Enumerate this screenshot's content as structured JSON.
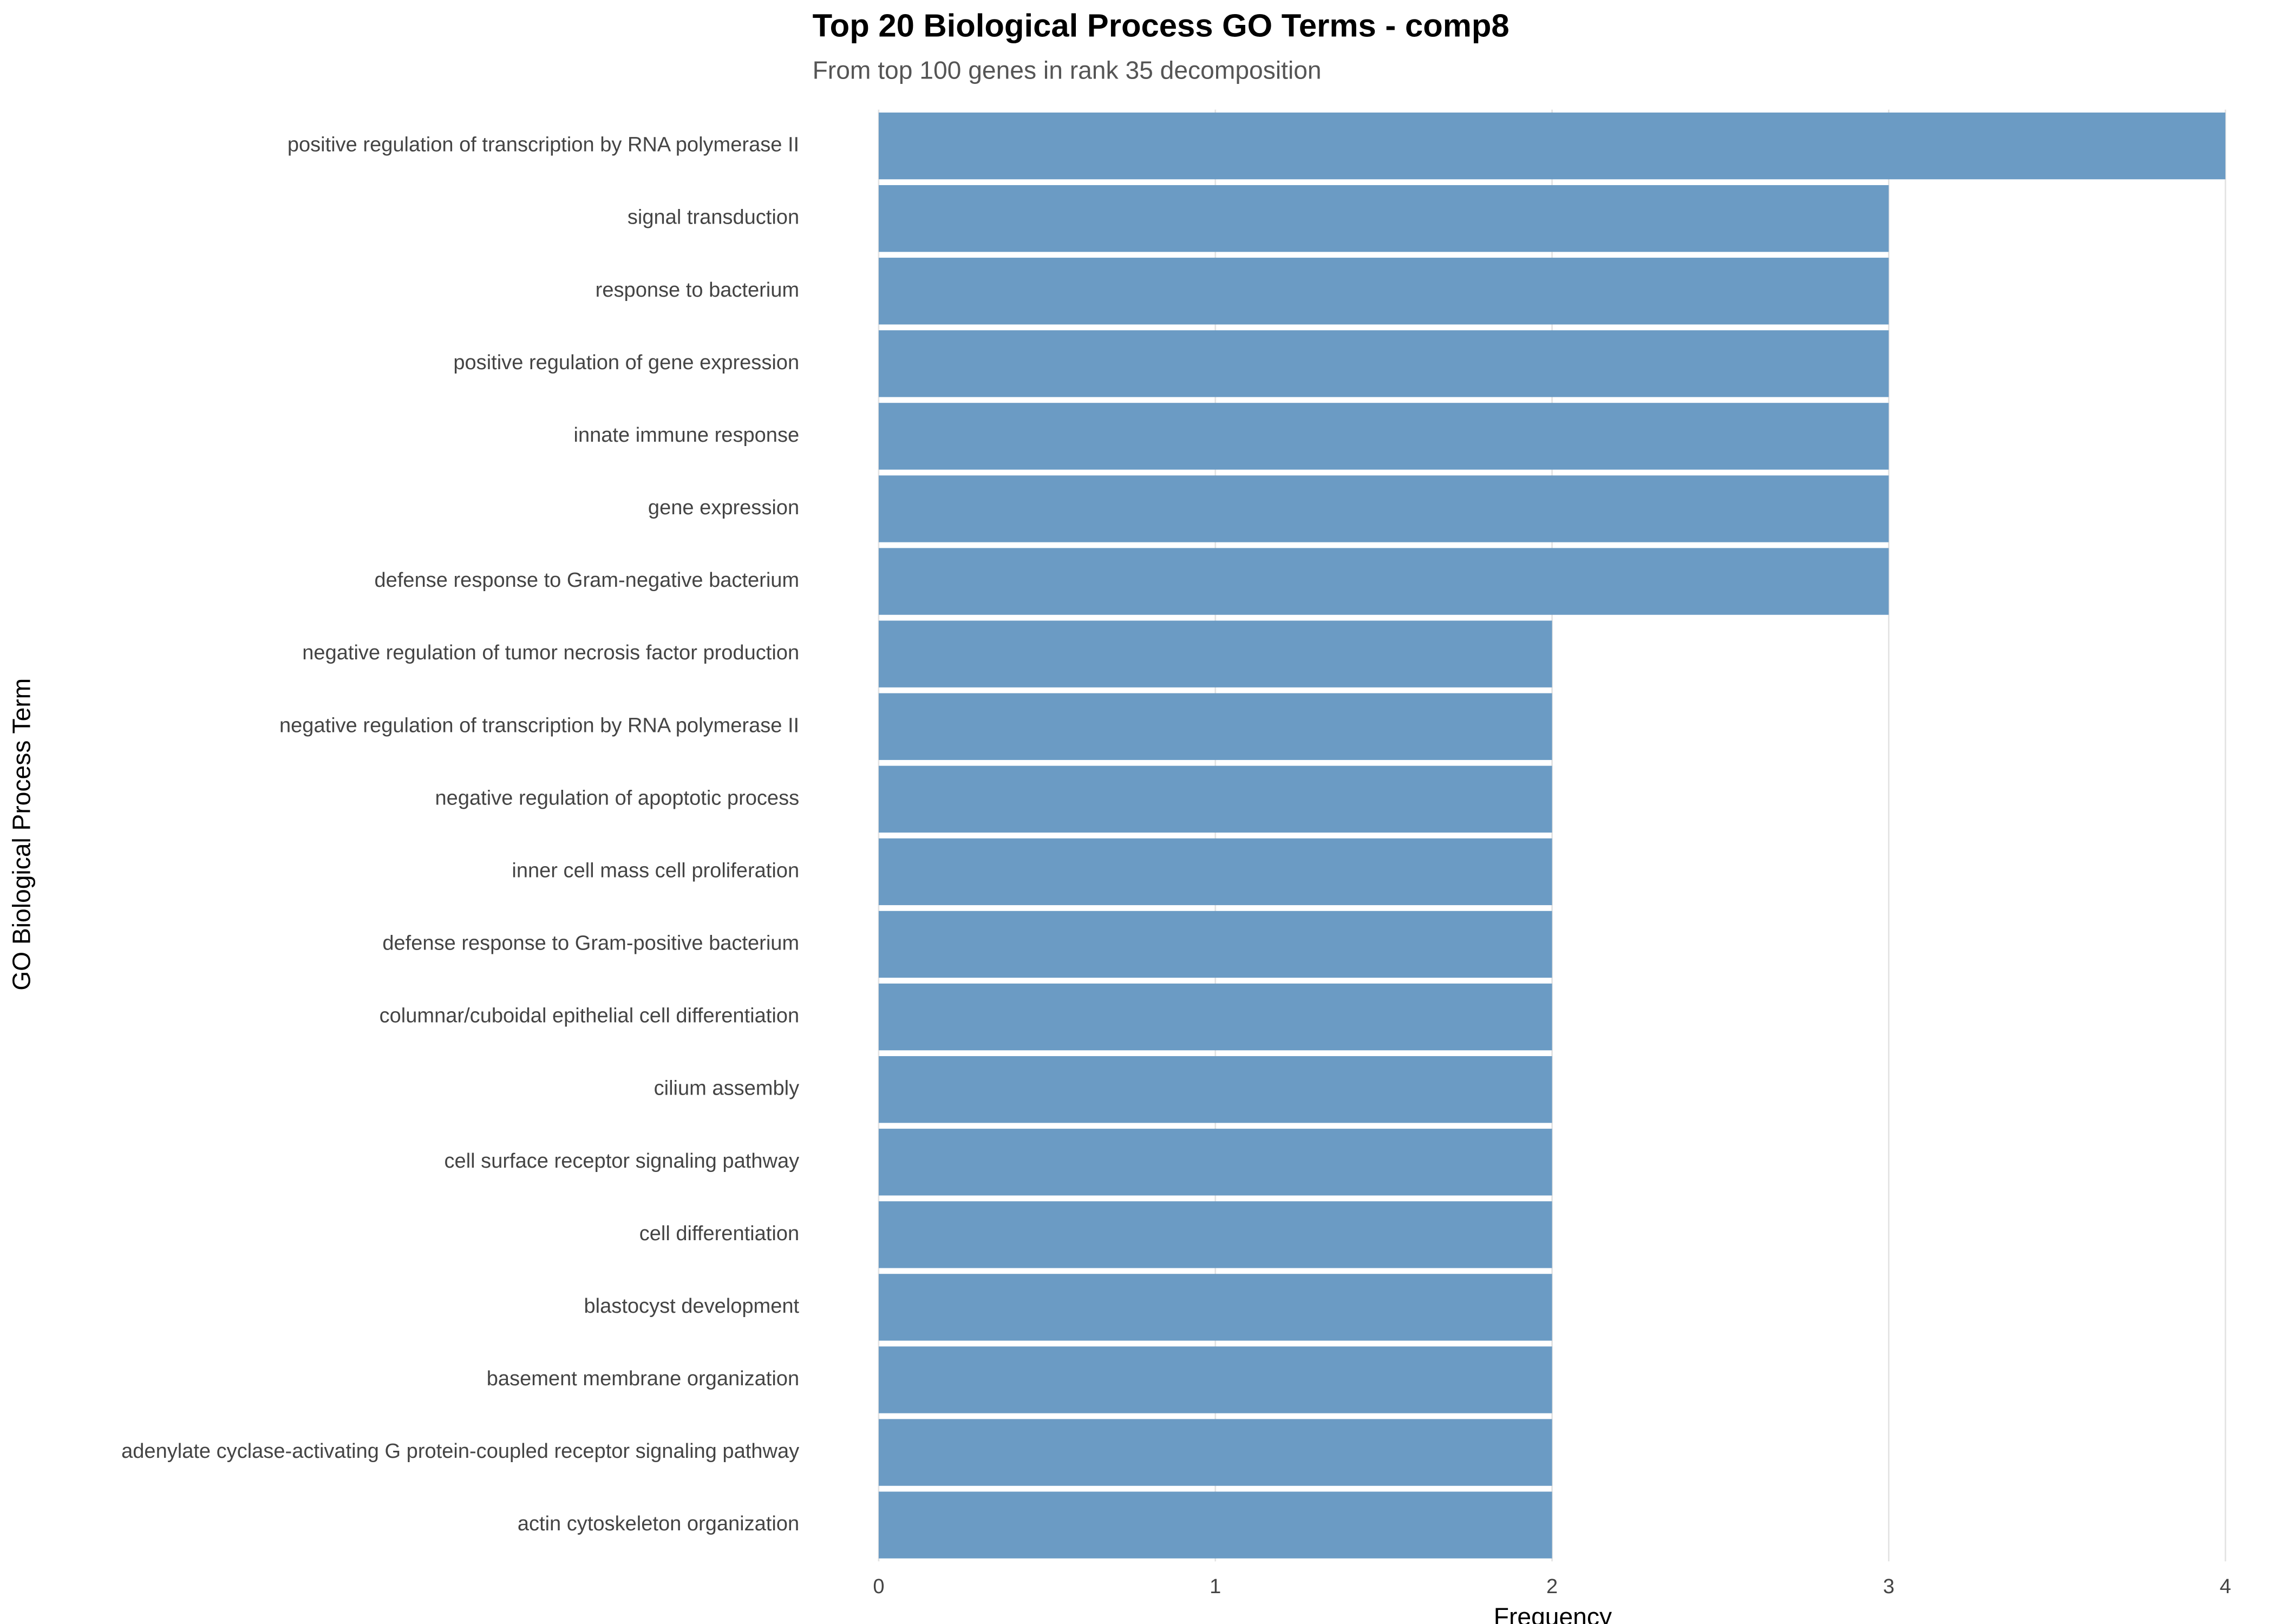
{
  "chart_data": {
    "type": "bar",
    "orientation": "horizontal",
    "title": "Top 20 Biological Process GO Terms - comp8",
    "subtitle": "From top 100 genes in rank 35 decomposition",
    "x_label": "Frequency",
    "y_label": "GO Biological Process Term",
    "categories": [
      "positive regulation of transcription by RNA polymerase II",
      "signal transduction",
      "response to bacterium",
      "positive regulation of gene expression",
      "innate immune response",
      "gene expression",
      "defense response to Gram-negative bacterium",
      "negative regulation of tumor necrosis factor production",
      "negative regulation of transcription by RNA polymerase II",
      "negative regulation of apoptotic process",
      "inner cell mass cell proliferation",
      "defense response to Gram-positive bacterium",
      "columnar/cuboidal epithelial cell differentiation",
      "cilium assembly",
      "cell surface receptor signaling pathway",
      "cell differentiation",
      "blastocyst development",
      "basement membrane organization",
      "adenylate cyclase-activating G protein-coupled receptor signaling pathway",
      "actin cytoskeleton organization"
    ],
    "values": [
      4,
      3,
      3,
      3,
      3,
      3,
      3,
      2,
      2,
      2,
      2,
      2,
      2,
      2,
      2,
      2,
      2,
      2,
      2,
      2
    ],
    "color": "#6b9bc4",
    "xlim": [
      0,
      4
    ],
    "xticks": [
      0,
      1,
      2,
      3,
      4
    ],
    "grid": true
  }
}
